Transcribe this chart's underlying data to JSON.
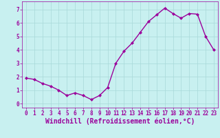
{
  "x": [
    0,
    1,
    2,
    3,
    4,
    5,
    6,
    7,
    8,
    9,
    10,
    11,
    12,
    13,
    14,
    15,
    16,
    17,
    18,
    19,
    20,
    21,
    22,
    23
  ],
  "y": [
    1.9,
    1.8,
    1.5,
    1.3,
    1.0,
    0.6,
    0.8,
    0.6,
    0.3,
    0.6,
    1.2,
    3.0,
    3.9,
    4.5,
    5.3,
    6.1,
    6.6,
    7.1,
    6.7,
    6.35,
    6.7,
    6.65,
    5.0,
    4.0
  ],
  "line_color": "#9b009b",
  "marker": "D",
  "marker_size": 2.0,
  "background_color": "#c8f0f0",
  "grid_color": "#a8d8d8",
  "xlabel": "Windchill (Refroidissement éolien,°C)",
  "xlabel_color": "#9b009b",
  "tick_color": "#9b009b",
  "ylim": [
    -0.3,
    7.6
  ],
  "xlim": [
    -0.5,
    23.5
  ],
  "yticks": [
    0,
    1,
    2,
    3,
    4,
    5,
    6,
    7
  ],
  "xticks": [
    0,
    1,
    2,
    3,
    4,
    5,
    6,
    7,
    8,
    9,
    10,
    11,
    12,
    13,
    14,
    15,
    16,
    17,
    18,
    19,
    20,
    21,
    22,
    23
  ],
  "tick_fontsize": 5.5,
  "xlabel_fontsize": 7.0,
  "line_width": 1.0
}
